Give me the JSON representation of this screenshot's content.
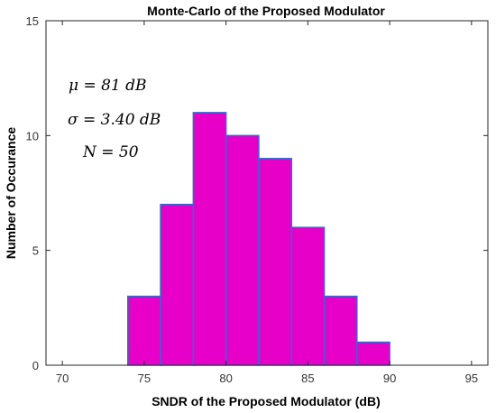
{
  "chart_data": {
    "type": "bar",
    "title": "Monte-Carlo of the Proposed Modulator",
    "xlabel": "SNDR of the Proposed Modulator (dB)",
    "ylabel": "Number of Occurance",
    "xlim": [
      69,
      96
    ],
    "ylim": [
      0,
      15
    ],
    "xticks": [
      70,
      75,
      80,
      85,
      90,
      95
    ],
    "yticks": [
      0,
      5,
      10,
      15
    ],
    "grid": false,
    "bins": [
      {
        "start": 74,
        "end": 76,
        "count": 3
      },
      {
        "start": 76,
        "end": 78,
        "count": 7
      },
      {
        "start": 78,
        "end": 80,
        "count": 11
      },
      {
        "start": 80,
        "end": 82,
        "count": 10
      },
      {
        "start": 82,
        "end": 84,
        "count": 9
      },
      {
        "start": 84,
        "end": 86,
        "count": 6
      },
      {
        "start": 86,
        "end": 88,
        "count": 3
      },
      {
        "start": 88,
        "end": 90,
        "count": 1
      }
    ],
    "bar_color": "#e600c8",
    "bar_edge_color": "#2e6bd6",
    "annotations": [
      "μ = 81 dB",
      "σ = 3.40 dB",
      "N = 50"
    ]
  }
}
